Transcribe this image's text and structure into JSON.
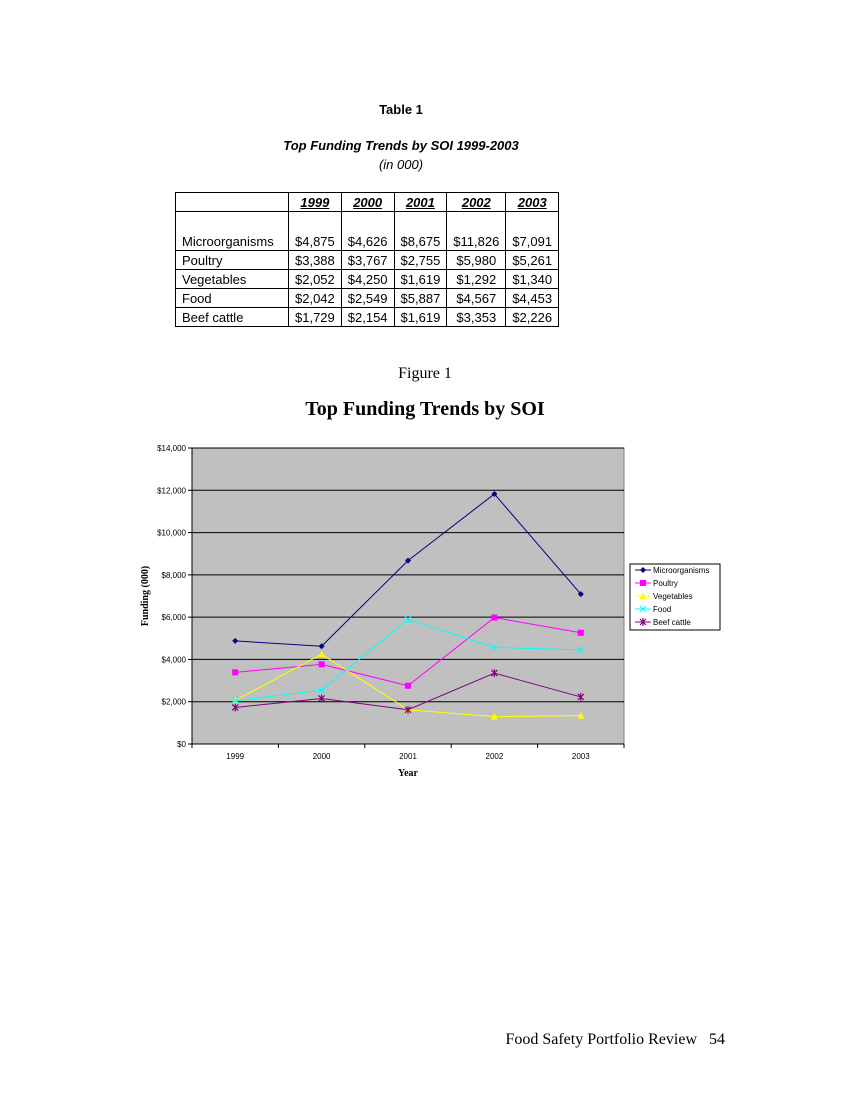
{
  "table": {
    "label": "Table 1",
    "title": "Top Funding Trends by SOI 1999-2003",
    "subtitle": "(in 000)",
    "years": [
      "1999",
      "2000",
      "2001",
      "2002",
      "2003"
    ],
    "rows": [
      {
        "name": "Microorganisms",
        "values": [
          "$4,875",
          "$4,626",
          "$8,675",
          "$11,826",
          "$7,091"
        ]
      },
      {
        "name": "Poultry",
        "values": [
          "$3,388",
          "$3,767",
          "$2,755",
          "$5,980",
          "$5,261"
        ]
      },
      {
        "name": "Vegetables",
        "values": [
          "$2,052",
          "$4,250",
          "$1,619",
          "$1,292",
          "$1,340"
        ]
      },
      {
        "name": "Food",
        "values": [
          "$2,042",
          "$2,549",
          "$5,887",
          "$4,567",
          "$4,453"
        ]
      },
      {
        "name": "Beef cattle",
        "values": [
          "$1,729",
          "$2,154",
          "$1,619",
          "$3,353",
          "$2,226"
        ]
      }
    ]
  },
  "figure": {
    "label": "Figure 1",
    "title": "Top Funding Trends by SOI"
  },
  "chart_data": {
    "type": "line",
    "title": "Top Funding Trends by SOI",
    "xlabel": "Year",
    "ylabel": "Funding (000)",
    "categories": [
      "1999",
      "2000",
      "2001",
      "2002",
      "2003"
    ],
    "ylim": [
      0,
      14000
    ],
    "yticks": [
      "$0",
      "$2,000",
      "$4,000",
      "$6,000",
      "$8,000",
      "$10,000",
      "$12,000",
      "$14,000"
    ],
    "grid": true,
    "legend_position": "right",
    "plot_background": "#c0c0c0",
    "series": [
      {
        "name": "Microorganisms",
        "color": "#000080",
        "marker": "diamond",
        "values": [
          4875,
          4626,
          8675,
          11826,
          7091
        ]
      },
      {
        "name": "Poultry",
        "color": "#ff00ff",
        "marker": "square",
        "values": [
          3388,
          3767,
          2755,
          5980,
          5261
        ]
      },
      {
        "name": "Vegetables",
        "color": "#ffff00",
        "marker": "triangle",
        "values": [
          2052,
          4250,
          1619,
          1292,
          1340
        ]
      },
      {
        "name": "Food",
        "color": "#00ffff",
        "marker": "x",
        "values": [
          2042,
          2549,
          5887,
          4567,
          4453
        ]
      },
      {
        "name": "Beef cattle",
        "color": "#800080",
        "marker": "star",
        "values": [
          1729,
          2154,
          1619,
          3353,
          2226
        ]
      }
    ]
  },
  "footer": {
    "text": "Food Safety Portfolio Review",
    "page": "54"
  }
}
